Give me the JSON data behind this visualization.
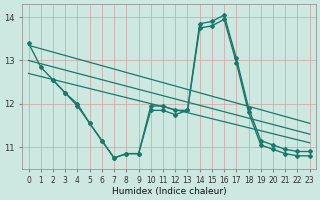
{
  "bg_color": "#cce8e0",
  "line_color": "#1a7a6a",
  "grid_color": "#b8d8d0",
  "xlabel": "Humidex (Indice chaleur)",
  "xlim": [
    -0.5,
    23.5
  ],
  "ylim": [
    10.5,
    14.3
  ],
  "yticks": [
    11,
    12,
    13,
    14
  ],
  "xticks": [
    0,
    1,
    2,
    3,
    4,
    5,
    6,
    7,
    8,
    9,
    10,
    11,
    12,
    13,
    14,
    15,
    16,
    17,
    18,
    19,
    20,
    21,
    22,
    23
  ],
  "series": [
    {
      "x": [
        0,
        1,
        2,
        3,
        4,
        5,
        6,
        7,
        8,
        9,
        10,
        11,
        12,
        13,
        14,
        15,
        16,
        17,
        18,
        19,
        20,
        21,
        22,
        23
      ],
      "y": [
        13.4,
        12.85,
        12.55,
        12.25,
        12.0,
        11.55,
        11.15,
        10.75,
        10.85,
        10.85,
        11.95,
        11.95,
        11.85,
        11.85,
        13.85,
        13.9,
        14.05,
        13.05,
        11.9,
        11.15,
        11.05,
        10.95,
        10.9,
        10.9
      ],
      "style": "-",
      "marker": "D",
      "markersize": 2.0,
      "linewidth": 1.0,
      "zorder": 4
    },
    {
      "x": [
        0,
        23
      ],
      "y": [
        13.35,
        11.55
      ],
      "style": "-",
      "marker": null,
      "markersize": 0,
      "linewidth": 0.9,
      "zorder": 2
    },
    {
      "x": [
        0,
        23
      ],
      "y": [
        13.0,
        11.3
      ],
      "style": "-",
      "marker": null,
      "markersize": 0,
      "linewidth": 0.9,
      "zorder": 2
    },
    {
      "x": [
        0,
        23
      ],
      "y": [
        12.7,
        11.1
      ],
      "style": "-",
      "marker": null,
      "markersize": 0,
      "linewidth": 0.9,
      "zorder": 2
    },
    {
      "x": [
        2,
        3,
        4,
        5,
        6,
        7,
        8,
        9,
        10,
        11,
        12,
        13,
        14,
        15,
        16,
        17,
        18,
        19,
        20,
        21,
        22,
        23
      ],
      "y": [
        12.55,
        12.25,
        11.95,
        11.55,
        11.15,
        10.75,
        10.85,
        10.85,
        11.85,
        11.85,
        11.75,
        11.85,
        13.75,
        13.8,
        13.95,
        12.95,
        11.8,
        11.05,
        10.95,
        10.85,
        10.8,
        10.8
      ],
      "style": "-",
      "marker": "D",
      "markersize": 2.0,
      "linewidth": 1.0,
      "zorder": 3
    }
  ]
}
